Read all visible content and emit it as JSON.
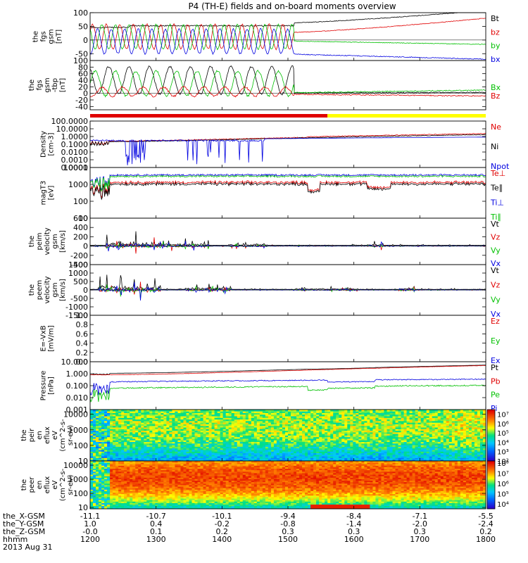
{
  "title": "P4 (TH-E) fields and on-board moments overview",
  "colors": {
    "black": "#000000",
    "red": "#e00000",
    "green": "#00c000",
    "blue": "#0000e0",
    "yellow": "#ffff00"
  },
  "chart_data": [
    {
      "type": "line",
      "name": "fgs_gsm",
      "ylabel": [
        "the",
        "fgs",
        "gsm",
        "[nT]"
      ],
      "ylim": [
        -75,
        100
      ],
      "yticks": [
        "100",
        "50",
        "0",
        "-50"
      ],
      "ytick_values": [
        100,
        50,
        0,
        -50
      ],
      "legend": [
        {
          "label": "Bt",
          "color": "black"
        },
        {
          "label": "bz",
          "color": "red"
        },
        {
          "label": "by",
          "color": "green"
        },
        {
          "label": "bx",
          "color": "blue"
        }
      ]
    },
    {
      "type": "line",
      "name": "fgs_gsm_tbp",
      "ylabel": [
        "the",
        "fgs",
        "gsm",
        "-tbp",
        "[nT]"
      ],
      "ylim": [
        -50,
        100
      ],
      "yticks": [
        "100",
        "80",
        "60",
        "40",
        "20",
        "0",
        "-20",
        "-40"
      ],
      "ytick_values": [
        100,
        80,
        60,
        40,
        20,
        0,
        -20,
        -40
      ],
      "legend": [
        {
          "label": "Bx",
          "color": "green"
        },
        {
          "label": "Bz",
          "color": "red"
        }
      ]
    },
    {
      "type": "line",
      "name": "density",
      "ylabel": [
        "Density",
        "[cm-3]"
      ],
      "yscale": "log",
      "ylim": [
        0.0001,
        100
      ],
      "yticks": [
        "100.0000",
        "10.0000",
        "1.0000",
        "0.1000",
        "0.0100",
        "0.0010",
        "0.0001"
      ],
      "ytick_values": [
        100,
        10,
        1,
        0.1,
        0.01,
        0.001,
        0.0001
      ],
      "legend": [
        {
          "label": "Ne",
          "color": "red"
        },
        {
          "label": "Ni",
          "color": "black"
        },
        {
          "label": "Npot",
          "color": "blue"
        }
      ]
    },
    {
      "type": "line",
      "name": "temperature",
      "ylabel": [
        "magT3",
        "[eV]"
      ],
      "yscale": "log",
      "ylim": [
        10,
        10000
      ],
      "yticks": [
        "10000",
        "1000",
        "100",
        "10"
      ],
      "ytick_values": [
        10000,
        1000,
        100,
        10
      ],
      "legend": [
        {
          "label": "Te⊥",
          "color": "red"
        },
        {
          "label": "Te∥",
          "color": "black"
        },
        {
          "label": "Ti⊥",
          "color": "blue"
        },
        {
          "label": "Ti∥",
          "color": "green"
        }
      ]
    },
    {
      "type": "line",
      "name": "peim_velocity",
      "ylabel": [
        "the",
        "peim",
        "velocity",
        "gsm",
        "[km/s]"
      ],
      "ylim": [
        -400,
        600
      ],
      "yticks": [
        "600",
        "400",
        "200",
        "0",
        "-200",
        "-400"
      ],
      "ytick_values": [
        600,
        400,
        200,
        0,
        -200,
        -400
      ],
      "legend": [
        {
          "label": "Vt",
          "color": "black"
        },
        {
          "label": "Vz",
          "color": "red"
        },
        {
          "label": "Vy",
          "color": "green"
        },
        {
          "label": "Vx",
          "color": "blue"
        }
      ]
    },
    {
      "type": "line",
      "name": "peem_velocity",
      "ylabel": [
        "the",
        "peem",
        "velocity",
        "gsm",
        "[km/s]"
      ],
      "ylim": [
        -1500,
        1500
      ],
      "yticks": [
        "1500",
        "1000",
        "500",
        "0",
        "-500",
        "-1000",
        "-1500"
      ],
      "ytick_values": [
        1500,
        1000,
        500,
        0,
        -500,
        -1000,
        -1500
      ],
      "legend": [
        {
          "label": "Vt",
          "color": "black"
        },
        {
          "label": "Vz",
          "color": "red"
        },
        {
          "label": "Vy",
          "color": "green"
        },
        {
          "label": "Vx",
          "color": "blue"
        }
      ]
    },
    {
      "type": "line",
      "name": "efield",
      "ylabel": [
        "E=-VxB",
        "[mV/m]"
      ],
      "ylim": [
        0,
        1
      ],
      "yticks": [
        "1.0",
        "0.8",
        "0.6",
        "0.4",
        "0.2",
        "0.0"
      ],
      "ytick_values": [
        1,
        0.8,
        0.6,
        0.4,
        0.2,
        0
      ],
      "legend": [
        {
          "label": "Ez",
          "color": "red"
        },
        {
          "label": "Ey",
          "color": "green"
        },
        {
          "label": "Ex",
          "color": "blue"
        }
      ]
    },
    {
      "type": "line",
      "name": "pressure",
      "ylabel": [
        "Pressure",
        "[nPa]"
      ],
      "yscale": "log",
      "ylim": [
        0.001,
        10
      ],
      "yticks": [
        "10.000",
        "1.000",
        "0.100",
        "0.010",
        "0.001"
      ],
      "ytick_values": [
        10,
        1,
        0.1,
        0.01,
        0.001
      ],
      "legend": [
        {
          "label": "Pt",
          "color": "black"
        },
        {
          "label": "Pb",
          "color": "red"
        },
        {
          "label": "Pe",
          "color": "green"
        },
        {
          "label": "Pi",
          "color": "blue"
        }
      ]
    },
    {
      "type": "heatmap",
      "name": "peir_eflux",
      "ylabel": [
        "the",
        "peir",
        "en",
        "eflux",
        "eV",
        "(cm^2-s-",
        "sr-eV)"
      ],
      "yscale": "log",
      "ylim": [
        10,
        20000
      ],
      "yticks": [
        "10000",
        "1000",
        "100",
        "10"
      ],
      "ytick_values": [
        10000,
        1000,
        100,
        10
      ],
      "colorbar": {
        "labels": [
          "10⁷",
          "10⁶",
          "10⁵",
          "10⁴",
          "10³",
          "10²"
        ],
        "range": [
          2,
          7.5
        ]
      }
    },
    {
      "type": "heatmap",
      "name": "peer_eflux",
      "ylabel": [
        "the",
        "peer",
        "en",
        "eflux",
        "eV",
        "(cm^2-s-",
        "sr-eV)"
      ],
      "yscale": "log",
      "ylim": [
        8,
        20000
      ],
      "yticks": [
        "10000",
        "1000",
        "100",
        "10"
      ],
      "ytick_values": [
        10000,
        1000,
        100,
        10
      ],
      "colorbar": {
        "labels": [
          "10⁸",
          "10⁷",
          "10⁶",
          "10⁵",
          "10⁴"
        ],
        "range": [
          3.5,
          8.2
        ]
      }
    }
  ],
  "status_bar": {
    "start_fraction": 0,
    "change_fraction": 0.6,
    "first_color": "red",
    "second_color": "yellow"
  },
  "x_axis": {
    "time_values": [
      1200,
      1300,
      1400,
      1500,
      1600,
      1700,
      1800
    ],
    "rows": [
      {
        "label": "the_X-GSM",
        "values": [
          "-11.1",
          "-10.7",
          "-10.1",
          "-9.4",
          "-8.4",
          "-7.1",
          "-5.5"
        ]
      },
      {
        "label": "the_Y-GSM",
        "values": [
          "1.0",
          "0.4",
          "-0.2",
          "-0.8",
          "-1.4",
          "-2.0",
          "-2.4"
        ]
      },
      {
        "label": "the_Z-GSM",
        "values": [
          "-0.0",
          "0.1",
          "0.2",
          "0.3",
          "0.3",
          "0.3",
          "0.2"
        ]
      },
      {
        "label": "hhmm",
        "values": [
          "1200",
          "1300",
          "1400",
          "1500",
          "1600",
          "1700",
          "1800"
        ]
      }
    ],
    "date": "2013 Aug 31"
  }
}
